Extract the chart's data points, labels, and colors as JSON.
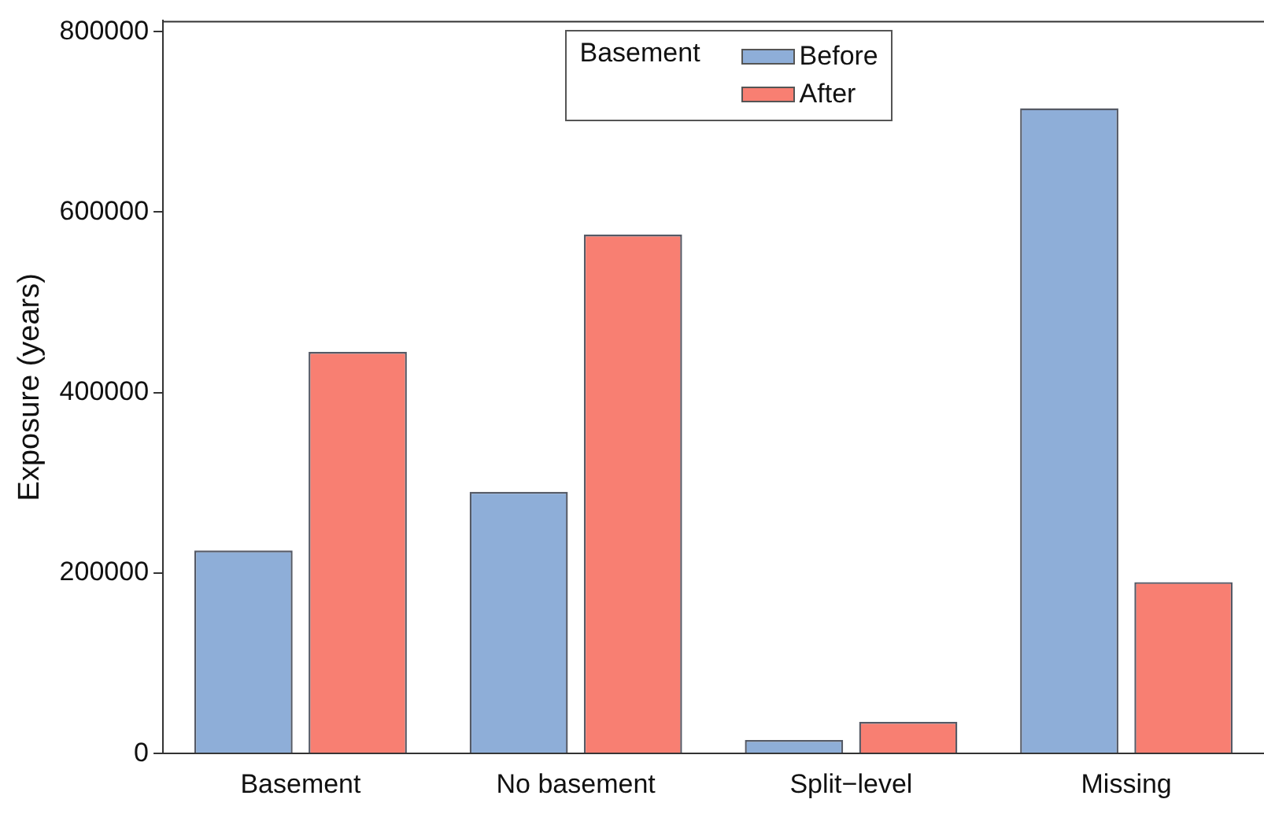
{
  "chart_data": {
    "type": "bar",
    "ylabel": "Exposure (years)",
    "legend_title": "Basement",
    "categories": [
      "Basement",
      "No basement",
      "Split−level",
      "Missing"
    ],
    "series": [
      {
        "name": "Before",
        "color": "#8eaed8",
        "values": [
          225000,
          290000,
          15000,
          715000
        ]
      },
      {
        "name": "After",
        "color": "#f87f72",
        "values": [
          445000,
          575000,
          35000,
          190000
        ]
      }
    ],
    "ylim": [
      0,
      812000
    ],
    "yticks": [
      0,
      200000,
      400000,
      600000,
      800000
    ],
    "grid": false,
    "legend": "top"
  }
}
